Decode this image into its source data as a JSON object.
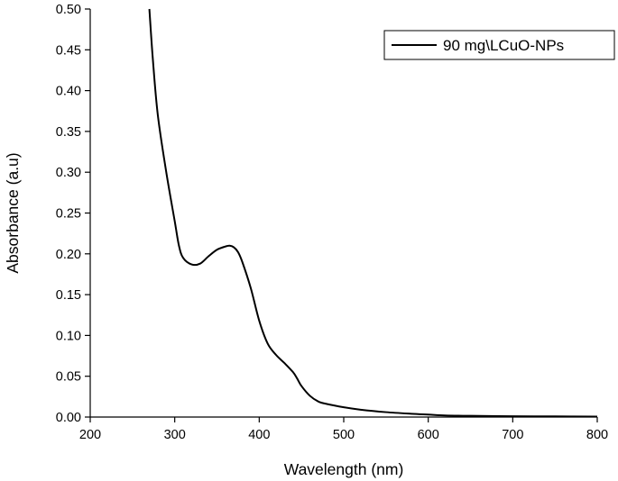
{
  "chart_data": {
    "type": "line",
    "title": "",
    "xlabel": "Wavelength (nm)",
    "ylabel": "Absorbance (a.u)",
    "xlim": [
      200,
      800
    ],
    "ylim": [
      0,
      0.5
    ],
    "x_ticks": [
      "200",
      "300",
      "400",
      "500",
      "600",
      "700",
      "800"
    ],
    "y_ticks": [
      "0.00",
      "0.05",
      "0.10",
      "0.15",
      "0.20",
      "0.25",
      "0.30",
      "0.35",
      "0.40",
      "0.45",
      "0.50"
    ],
    "grid": false,
    "legend_position": "top-right",
    "series": [
      {
        "name": "90 mg\\LCuO-NPs",
        "color": "#000000",
        "x": [
          270,
          274,
          280,
          290,
          300,
          305,
          310,
          320,
          330,
          340,
          350,
          360,
          365,
          370,
          375,
          380,
          390,
          400,
          410,
          420,
          430,
          440,
          445,
          450,
          460,
          470,
          480,
          500,
          520,
          550,
          580,
          600,
          620,
          650,
          700,
          750,
          800
        ],
        "y": [
          0.5,
          0.44,
          0.37,
          0.3,
          0.24,
          0.21,
          0.195,
          0.187,
          0.188,
          0.197,
          0.205,
          0.209,
          0.21,
          0.208,
          0.202,
          0.19,
          0.158,
          0.118,
          0.09,
          0.076,
          0.066,
          0.055,
          0.047,
          0.038,
          0.026,
          0.019,
          0.016,
          0.012,
          0.009,
          0.006,
          0.004,
          0.003,
          0.002,
          0.0015,
          0.001,
          0.0008,
          0.0005
        ]
      }
    ]
  }
}
